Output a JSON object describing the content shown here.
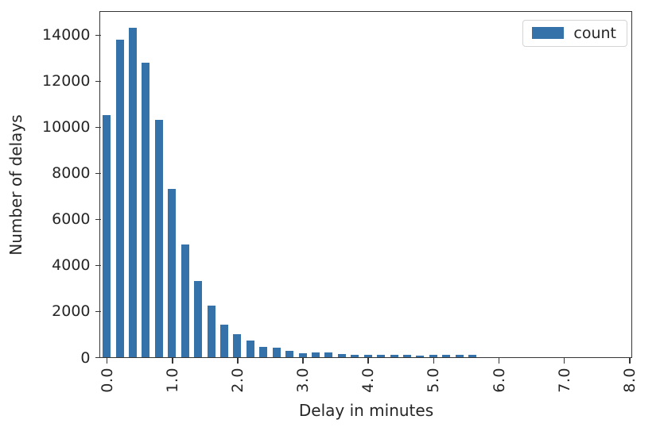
{
  "chart_data": {
    "type": "bar",
    "title": "",
    "xlabel": "Delay in minutes",
    "ylabel": "Number of delays",
    "legend": {
      "label": "count",
      "position": "upper right"
    },
    "categories": [
      "0.0",
      "0.2",
      "0.4",
      "0.6",
      "0.8",
      "1.0",
      "1.2",
      "1.4",
      "1.6",
      "1.8",
      "2.0",
      "2.2",
      "2.4",
      "2.6",
      "2.8",
      "3.0",
      "3.2",
      "3.4",
      "3.6",
      "3.8",
      "4.0",
      "4.2",
      "4.4",
      "4.6",
      "4.8",
      "5.0",
      "5.2",
      "5.4",
      "5.6",
      "5.8",
      "6.0",
      "6.2",
      "6.4",
      "6.6",
      "6.8",
      "7.0",
      "7.2",
      "7.4",
      "7.6",
      "7.8",
      "8.0"
    ],
    "values": [
      10500,
      13800,
      14300,
      12800,
      10300,
      7300,
      4900,
      3300,
      2250,
      1400,
      1000,
      720,
      460,
      400,
      260,
      190,
      210,
      220,
      130,
      100,
      90,
      90,
      100,
      100,
      80,
      90,
      90,
      100,
      90,
      0,
      0,
      0,
      0,
      0,
      0,
      0,
      0,
      0,
      0,
      0,
      0
    ],
    "x_tick_labels": [
      "0.0",
      "1.0",
      "2.0",
      "3.0",
      "4.0",
      "5.0",
      "6.0",
      "7.0",
      "8.0"
    ],
    "x_tick_indices": [
      0,
      5,
      10,
      15,
      20,
      25,
      30,
      35,
      40
    ],
    "y_tick_values": [
      0,
      2000,
      4000,
      6000,
      8000,
      10000,
      12000,
      14000
    ],
    "ylim": [
      0,
      15015
    ],
    "grid": false,
    "colors": {
      "bar": "#3572a9",
      "axis": "#363636",
      "text": "#262626",
      "legend_border": "#d4d4d4",
      "background": "#ffffff"
    }
  }
}
